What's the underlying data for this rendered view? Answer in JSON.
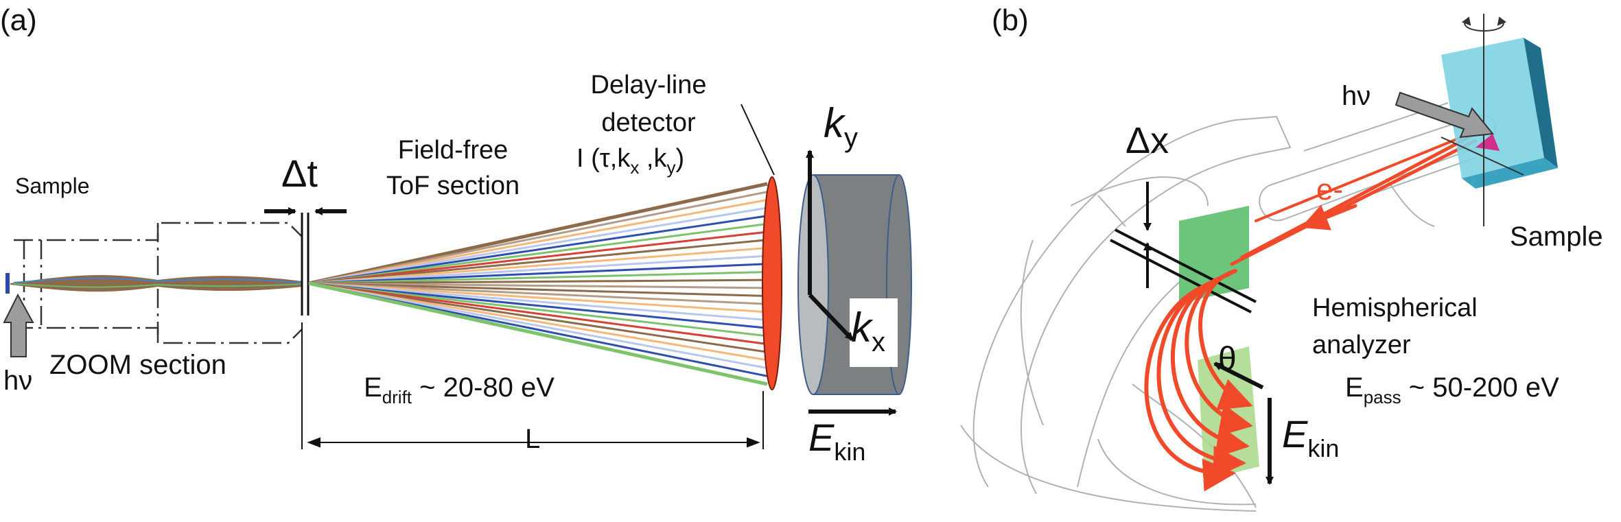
{
  "panels": {
    "a": {
      "label": "(a)",
      "sample": "Sample",
      "hv": "hν",
      "zoom": "ZOOM section",
      "delta_t": "Δt",
      "fieldfree_1": "Field-free",
      "fieldfree_2": "ToF section",
      "delay_1": "Delay-line",
      "delay_2": "detector",
      "intensity_pre": "I (τ,k",
      "intensity_sub_x": "x",
      "intensity_mid": " ,k",
      "intensity_sub_y": "y",
      "intensity_post": ")",
      "edrift_E": "E",
      "edrift_sub": "drift",
      "edrift_rest": " ~ 20-80 eV",
      "L": "L",
      "ky_k": "k",
      "ky_sub": "y",
      "kx_k": "k",
      "kx_sub": "x",
      "ekin_E": "E",
      "ekin_sub": "kin"
    },
    "b": {
      "label": "(b)",
      "hv": "hν",
      "delta_x": "Δx",
      "electron": "e-",
      "sample": "Sample",
      "hemi_1": "Hemispherical",
      "hemi_2": "analyzer",
      "theta": "θ",
      "epass_E": "E",
      "epass_sub": "pass",
      "epass_rest": " ~ 50-200 eV",
      "ekin_E": "E",
      "ekin_sub": "kin"
    }
  },
  "colors": {
    "detector": "#f04a2a",
    "cylinder": "#7d8083",
    "electron_traj": "#f04a2a",
    "slit": "#5cbf6b",
    "sample_b": "#7fd3e3",
    "beam_brown": "#8c6a4a"
  }
}
